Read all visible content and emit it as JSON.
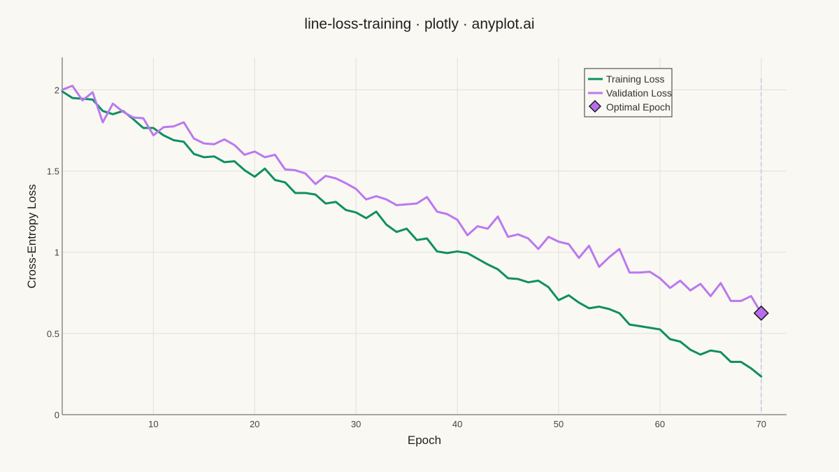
{
  "chart_data": {
    "type": "line",
    "title": "line-loss-training · plotly · anyplot.ai",
    "xlabel": "Epoch",
    "ylabel": "Cross-Entropy Loss",
    "xlim": [
      1,
      72.5
    ],
    "ylim": [
      0,
      2.2
    ],
    "xticks": [
      10,
      20,
      30,
      40,
      50,
      60,
      70
    ],
    "yticks": [
      0,
      0.5,
      1,
      1.5,
      2
    ],
    "ytick_labels": [
      "0",
      "0.5",
      "1",
      "1.5",
      "2"
    ],
    "grid": true,
    "legend_position": "top-right",
    "colors": {
      "training": "#0e8f63",
      "validation": "#bb78f0",
      "marker": "#b76cee",
      "vline": "#c9c5e3"
    },
    "x": [
      1,
      2,
      3,
      4,
      5,
      6,
      7,
      8,
      9,
      10,
      11,
      12,
      13,
      14,
      15,
      16,
      17,
      18,
      19,
      20,
      21,
      22,
      23,
      24,
      25,
      26,
      27,
      28,
      29,
      30,
      31,
      32,
      33,
      34,
      35,
      36,
      37,
      38,
      39,
      40,
      41,
      42,
      43,
      44,
      45,
      46,
      47,
      48,
      49,
      50,
      51,
      52,
      53,
      54,
      55,
      56,
      57,
      58,
      59,
      60,
      61,
      62,
      63,
      64,
      65,
      66,
      67,
      68,
      69,
      70
    ],
    "series": [
      {
        "name": "Training Loss",
        "values": [
          1.99,
          1.95,
          1.945,
          1.94,
          1.87,
          1.85,
          1.87,
          1.82,
          1.765,
          1.765,
          1.72,
          1.69,
          1.68,
          1.605,
          1.585,
          1.59,
          1.555,
          1.56,
          1.505,
          1.465,
          1.515,
          1.445,
          1.43,
          1.365,
          1.365,
          1.355,
          1.3,
          1.31,
          1.26,
          1.245,
          1.21,
          1.25,
          1.17,
          1.125,
          1.145,
          1.075,
          1.085,
          1.005,
          0.995,
          1.005,
          0.995,
          0.96,
          0.925,
          0.895,
          0.84,
          0.835,
          0.815,
          0.825,
          0.785,
          0.705,
          0.735,
          0.69,
          0.655,
          0.665,
          0.65,
          0.625,
          0.555,
          0.545,
          0.535,
          0.525,
          0.465,
          0.45,
          0.4,
          0.37,
          0.395,
          0.385,
          0.325,
          0.325,
          0.285,
          0.235
        ]
      },
      {
        "name": "Validation Loss",
        "values": [
          2.0,
          2.025,
          1.935,
          1.985,
          1.8,
          1.915,
          1.865,
          1.83,
          1.825,
          1.72,
          1.77,
          1.775,
          1.8,
          1.7,
          1.67,
          1.665,
          1.695,
          1.66,
          1.6,
          1.62,
          1.585,
          1.6,
          1.51,
          1.505,
          1.485,
          1.42,
          1.47,
          1.455,
          1.425,
          1.39,
          1.325,
          1.345,
          1.325,
          1.29,
          1.295,
          1.3,
          1.34,
          1.25,
          1.235,
          1.2,
          1.105,
          1.16,
          1.145,
          1.22,
          1.095,
          1.11,
          1.085,
          1.02,
          1.095,
          1.065,
          1.05,
          0.965,
          1.04,
          0.91,
          0.97,
          1.02,
          0.875,
          0.875,
          0.88,
          0.84,
          0.78,
          0.825,
          0.765,
          0.805,
          0.73,
          0.81,
          0.7,
          0.7,
          0.73,
          0.625
        ]
      }
    ],
    "annotations": {
      "optimal_epoch": {
        "name": "Optimal Epoch",
        "x": 70,
        "y": 0.625
      }
    }
  }
}
